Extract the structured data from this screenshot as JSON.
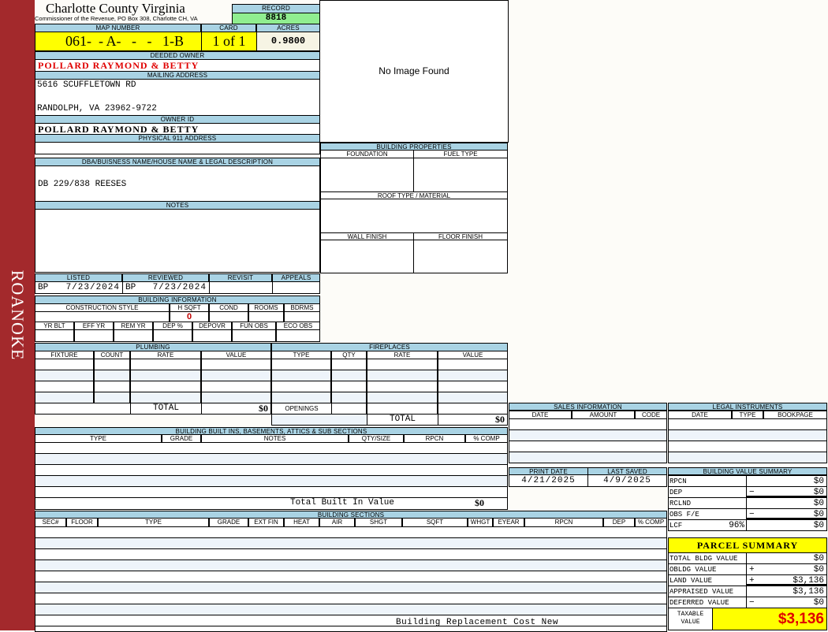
{
  "sidebar_label": "ROANOKE",
  "header": {
    "title": "Charlotte County Virginia",
    "subtitle": "Commissioner of the Revenue, PO Box 308, Charlotte CH, VA",
    "record_label": "RECORD",
    "record": "8818"
  },
  "map": {
    "map_label": "MAP NUMBER",
    "map_number": "061-  - A-   -   -   1-B",
    "card_label": "CARD",
    "card": "1 of 1",
    "acres_label": "ACRES",
    "acres": "0.9800"
  },
  "owner": {
    "deeded_label": "DEEDED OWNER",
    "deeded": "POLLARD RAYMOND & BETTY",
    "mailing_label": "MAILING ADDRESS",
    "address1": "5616 SCUFFLETOWN RD",
    "address2": "RANDOLPH, VA 23962-9722",
    "owner_id_label": "OWNER ID",
    "owner_id": "POLLARD RAYMOND & BETTY",
    "physical_label": "PHYSICAL 911 ADDRESS",
    "physical": "",
    "dba_label": "DBA/BUISNESS NAME/HOUSE NAME & LEGAL DESCRIPTION",
    "dba": "DB 229/838 REESES",
    "notes_label": "NOTES",
    "notes": ""
  },
  "image_text": "No Image Found",
  "review": {
    "headers": [
      "LISTED",
      "REVIEWED",
      "REVISIT",
      "APPEALS"
    ],
    "listed_by": "BP",
    "listed": "7/23/2024",
    "reviewed_by": "BP",
    "reviewed": "7/23/2024"
  },
  "building_info": {
    "title": "BUILDING INFORMATION",
    "headers1": [
      "CONSTRUCTION STYLE",
      "H SQFT",
      "COND",
      "ROOMS",
      "BDRMS"
    ],
    "hsqft": "0",
    "headers2": [
      "YR BLT",
      "EFF YR",
      "REM YR",
      "DEP %",
      "DEPOVR",
      "FUN OBS",
      "ECO OBS"
    ]
  },
  "building_properties": {
    "title": "BUILDING PROPERTIES",
    "foundation": "FOUNDATION",
    "fuel": "FUEL TYPE",
    "roof": "ROOF TYPE / MATERIAL",
    "wall": "WALL FINISH",
    "floor": "FLOOR FINISH"
  },
  "plumbing": {
    "title": "PLUMBING",
    "headers": [
      "FIXTURE",
      "COUNT",
      "RATE",
      "VALUE"
    ],
    "total_label": "TOTAL",
    "total": "$0"
  },
  "fireplaces": {
    "title": "FIREPLACES",
    "headers": [
      "TYPE",
      "QTY",
      "RATE",
      "VALUE"
    ],
    "openings_label": "OPENINGS",
    "total_label": "TOTAL",
    "total": "$0"
  },
  "built_ins": {
    "title": "BUILDING BUILT INS, BASEMENTS, ATTICS & SUB SECTIONS",
    "headers": [
      "TYPE",
      "GRADE",
      "NOTES",
      "QTY/SIZE",
      "RPCN",
      "% COMP"
    ],
    "total_label": "Total Built In Value",
    "total": "$0"
  },
  "sections": {
    "title": "BUILDING SECTIONS",
    "headers": [
      "SEC#",
      "FLOOR",
      "TYPE",
      "GRADE",
      "EXT FIN",
      "HEAT",
      "AIR",
      "SHGT",
      "SQFT",
      "WHGT",
      "EYEAR",
      "RPCN",
      "DEP",
      "% COMP"
    ],
    "footer_label": "Building Replacement Cost New"
  },
  "sales": {
    "title": "SALES INFORMATION",
    "headers": [
      "DATE",
      "AMOUNT",
      "CODE"
    ]
  },
  "legal": {
    "title": "LEGAL INSTRUMENTS",
    "headers": [
      "DATE",
      "TYPE",
      "BOOKPAGE"
    ]
  },
  "dates": {
    "print_label": "PRINT DATE",
    "print": "4/21/2025",
    "saved_label": "LAST SAVED",
    "saved": "4/9/2025"
  },
  "value_summary": {
    "title": "BUILDING VALUE SUMMARY",
    "rows": [
      {
        "label": "RPCN",
        "sign": "",
        "value": "$0"
      },
      {
        "label": "DEP",
        "sign": "−",
        "value": "$0"
      },
      {
        "label": "RCLND",
        "sign": "",
        "value": "$0"
      },
      {
        "label": "OBS F/E",
        "sign": "−",
        "value": "$0"
      },
      {
        "label": "LCF",
        "extra": "96%",
        "sign": "",
        "value": "$0"
      }
    ]
  },
  "parcel_summary": {
    "title": "PARCEL SUMMARY",
    "rows": [
      {
        "label": "TOTAL BLDG VALUE",
        "sign": "",
        "value": "$0"
      },
      {
        "label": "OBLDG VALUE",
        "sign": "+",
        "value": "$0"
      },
      {
        "label": "LAND VALUE",
        "sign": "+",
        "value": "$3,136"
      },
      {
        "label": "APPRAISED VALUE",
        "sign": "",
        "value": "$3,136"
      },
      {
        "label": "DEFERRED VALUE",
        "sign": "−",
        "value": "$0"
      }
    ],
    "taxable_label": "TAXABLE VALUE",
    "taxable": "$3,136"
  },
  "colors": {
    "sidebar": "#a3292c",
    "header": "#a9d3e4",
    "record": "#90ee90",
    "highlight": "#ffff00",
    "owner": "#e00000"
  }
}
